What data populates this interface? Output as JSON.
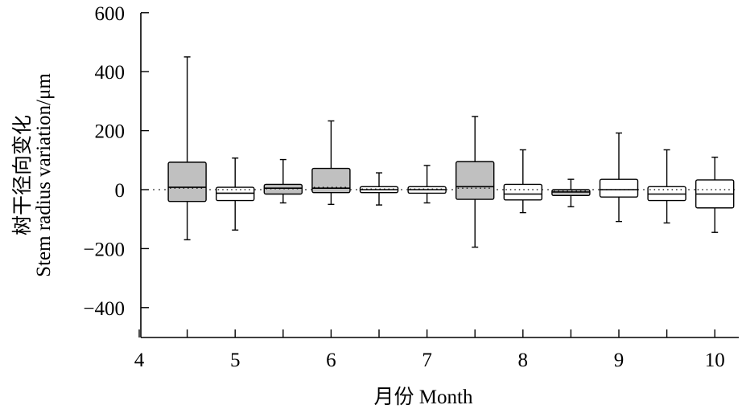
{
  "chart_data": {
    "type": "box",
    "xlabel": "月份 Month",
    "ylabel_cn": "树干径向变化",
    "ylabel_en": "Stem radius variation/μm",
    "xlim": [
      4,
      10.25
    ],
    "ylim": [
      -500,
      600
    ],
    "xticks": [
      4,
      5,
      6,
      7,
      8,
      9,
      10
    ],
    "yticks": [
      600,
      400,
      200,
      0,
      -200,
      -400
    ],
    "grid": false,
    "legend": "none",
    "colors": {
      "filled": "#c0c0c0",
      "open": "#ffffff",
      "stroke": "#000000"
    },
    "boxes": [
      {
        "x": 4.5,
        "min": -170,
        "q1": -40,
        "median": 8,
        "mean": 5,
        "q3": 93,
        "max": 450,
        "filled": true
      },
      {
        "x": 5.0,
        "min": -137,
        "q1": -37,
        "median": -12,
        "mean": 0,
        "q3": 8,
        "max": 107,
        "filled": false
      },
      {
        "x": 5.5,
        "min": -45,
        "q1": -15,
        "median": 5,
        "mean": 3,
        "q3": 18,
        "max": 102,
        "filled": true
      },
      {
        "x": 6.0,
        "min": -50,
        "q1": -10,
        "median": 5,
        "mean": 8,
        "q3": 72,
        "max": 233,
        "filled": true
      },
      {
        "x": 6.5,
        "min": -52,
        "q1": -10,
        "median": 0,
        "mean": 2,
        "q3": 10,
        "max": 57,
        "filled": false
      },
      {
        "x": 7.0,
        "min": -45,
        "q1": -12,
        "median": 0,
        "mean": 2,
        "q3": 10,
        "max": 82,
        "filled": false
      },
      {
        "x": 7.5,
        "min": -195,
        "q1": -33,
        "median": 10,
        "mean": 5,
        "q3": 95,
        "max": 248,
        "filled": true
      },
      {
        "x": 8.0,
        "min": -78,
        "q1": -35,
        "median": -15,
        "mean": 0,
        "q3": 18,
        "max": 135,
        "filled": false
      },
      {
        "x": 8.5,
        "min": -58,
        "q1": -20,
        "median": -8,
        "mean": -5,
        "q3": 0,
        "max": 35,
        "filled": true
      },
      {
        "x": 9.0,
        "min": -108,
        "q1": -25,
        "median": 0,
        "mean": 0,
        "q3": 35,
        "max": 192,
        "filled": false
      },
      {
        "x": 9.5,
        "min": -113,
        "q1": -37,
        "median": -15,
        "mean": 0,
        "q3": 10,
        "max": 135,
        "filled": false
      },
      {
        "x": 10.0,
        "min": -145,
        "q1": -62,
        "median": -15,
        "mean": 0,
        "q3": 33,
        "max": 110,
        "filled": false
      }
    ]
  }
}
